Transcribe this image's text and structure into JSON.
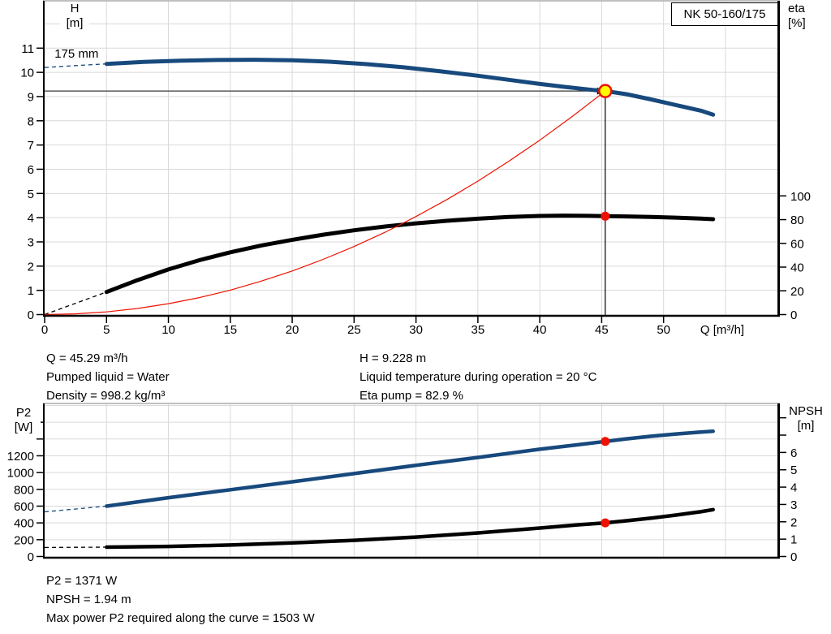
{
  "pump_model": "NK 50-160/175",
  "colors": {
    "blue": "#17497d",
    "black": "#000000",
    "red": "#ee1100",
    "yellow": "#ffff00",
    "grid": "#d9d9d9",
    "frame": "#999999",
    "guide": "#3a3a3a"
  },
  "info_mid": {
    "left": [
      "Q = 45.29 m³/h",
      "Pumped liquid = Water",
      "Density = 998.2 kg/m³"
    ],
    "right": [
      "H = 9.228 m",
      "Liquid temperature during operation = 20 °C",
      "Eta pump = 82.9 %"
    ]
  },
  "info_bottom": [
    "P2 = 1371 W",
    "NPSH = 1.94 m",
    "Max power P2 required along the curve = 1503 W"
  ],
  "chart_data": [
    {
      "name": "qh-eta-chart",
      "type": "line",
      "title": "NK 50-160/175",
      "x_axis": {
        "label": "Q [m³/h]",
        "min": 0,
        "max": 59.2,
        "ticks": [
          0,
          5,
          10,
          15,
          20,
          25,
          30,
          35,
          40,
          45,
          50
        ],
        "grid": [
          5,
          10,
          15,
          20,
          25,
          30,
          35,
          40,
          45,
          50,
          55
        ]
      },
      "left_axis": {
        "title": [
          "H",
          "[m]"
        ],
        "min": 0,
        "max": 12.92,
        "ticks": [
          0,
          1,
          2,
          3,
          4,
          5,
          6,
          7,
          8,
          9,
          10,
          11
        ],
        "grid": [
          1,
          2,
          3,
          4,
          5,
          6,
          7,
          8,
          9,
          10,
          11,
          12
        ]
      },
      "right_axis": {
        "title": [
          "eta",
          "[%]"
        ],
        "min": 0,
        "max": 263.7,
        "ticks": [
          0,
          20,
          40,
          60,
          80,
          100
        ],
        "ticks_unlabeled": []
      },
      "series": [
        {
          "name": "head-curve-175mm",
          "axis": "left",
          "color": "blue",
          "width": 5,
          "dash_points": [
            [
              0,
              10.2
            ],
            [
              2.5,
              10.28
            ],
            [
              5,
              10.35
            ]
          ],
          "points": [
            [
              5,
              10.35
            ],
            [
              8,
              10.43
            ],
            [
              11,
              10.48
            ],
            [
              14,
              10.51
            ],
            [
              17,
              10.52
            ],
            [
              20,
              10.5
            ],
            [
              23,
              10.44
            ],
            [
              26,
              10.34
            ],
            [
              29,
              10.21
            ],
            [
              32,
              10.04
            ],
            [
              35,
              9.86
            ],
            [
              38,
              9.66
            ],
            [
              40,
              9.52
            ],
            [
              42,
              9.4
            ],
            [
              44,
              9.29
            ],
            [
              45.29,
              9.228
            ],
            [
              47,
              9.1
            ],
            [
              49,
              8.88
            ],
            [
              51,
              8.65
            ],
            [
              53,
              8.42
            ],
            [
              54,
              8.25
            ]
          ]
        },
        {
          "name": "efficiency-curve",
          "axis": "right",
          "color": "black",
          "width": 5,
          "dash_points": [
            [
              0,
              0
            ],
            [
              5,
              19
            ]
          ],
          "points": [
            [
              5,
              19
            ],
            [
              7.5,
              29
            ],
            [
              10,
              38
            ],
            [
              12.5,
              45.8
            ],
            [
              15,
              52.5
            ],
            [
              17.5,
              58.2
            ],
            [
              20,
              63
            ],
            [
              22.5,
              67.3
            ],
            [
              25,
              71
            ],
            [
              27.5,
              74.2
            ],
            [
              30,
              76.9
            ],
            [
              32.5,
              79
            ],
            [
              35,
              80.8
            ],
            [
              37.5,
              82.2
            ],
            [
              40,
              83.1
            ],
            [
              42,
              83.4
            ],
            [
              44,
              83.2
            ],
            [
              45.29,
              82.9
            ],
            [
              47,
              82.7
            ],
            [
              49,
              82.3
            ],
            [
              51,
              81.7
            ],
            [
              53,
              80.9
            ],
            [
              54,
              80.4
            ]
          ]
        },
        {
          "name": "system-curve",
          "axis": "left",
          "color": "red",
          "width": 1.2,
          "points": [
            [
              0,
              0
            ],
            [
              2.5,
              0.03
            ],
            [
              5,
              0.11
            ],
            [
              7.5,
              0.25
            ],
            [
              10,
              0.45
            ],
            [
              12.5,
              0.7
            ],
            [
              15,
              1.01
            ],
            [
              17.5,
              1.38
            ],
            [
              20,
              1.8
            ],
            [
              22.5,
              2.28
            ],
            [
              25,
              2.81
            ],
            [
              27.5,
              3.4
            ],
            [
              30,
              4.05
            ],
            [
              32.5,
              4.75
            ],
            [
              35,
              5.51
            ],
            [
              37.5,
              6.33
            ],
            [
              40,
              7.2
            ],
            [
              42.5,
              8.13
            ],
            [
              45.29,
              9.228
            ]
          ]
        }
      ],
      "guides": {
        "q": 45.29,
        "axis": "left",
        "v": 9.228
      },
      "markers": [
        {
          "name": "duty-point-marker",
          "q": 45.29,
          "axis": "left",
          "v": 9.228,
          "r": 7.5,
          "fill": "yellow",
          "stroke": "red",
          "sw": 2.5
        },
        {
          "name": "efficiency-point-marker",
          "q": 45.29,
          "axis": "right",
          "v": 82.9,
          "r": 5.5,
          "fill": "red"
        }
      ],
      "annotations": [
        {
          "name": "impeller-diameter-label",
          "text": "175 mm",
          "q": 0.8,
          "axis": "left",
          "v": 10.61
        }
      ],
      "duty_point": {
        "q_m3h": 45.29,
        "h_m": 9.228,
        "eta_pct": 82.9
      }
    },
    {
      "name": "p2-npsh-chart",
      "type": "line",
      "x_axis": {
        "label": "",
        "min": 0,
        "max": 59.2,
        "ticks": [],
        "grid": [
          5,
          10,
          15,
          20,
          25,
          30,
          35,
          40,
          45,
          50,
          55
        ]
      },
      "left_axis": {
        "title": [
          "P2",
          "[W]"
        ],
        "min": 0,
        "max": 1814,
        "ticks": [
          0,
          200,
          400,
          600,
          800,
          1000,
          1200
        ],
        "ticks_unlabeled": [
          1400,
          1600
        ],
        "grid": [
          200,
          400,
          600,
          800,
          1000,
          1200,
          1400,
          1600,
          1800
        ]
      },
      "right_axis": {
        "title": [
          "NPSH",
          "[m]"
        ],
        "min": 0,
        "max": 8.78,
        "ticks": [
          0,
          1,
          2,
          3,
          4,
          5,
          6
        ],
        "ticks_unlabeled": [
          7,
          8
        ]
      },
      "series": [
        {
          "name": "p2-curve",
          "axis": "left",
          "color": "blue",
          "width": 4.5,
          "dash_points": [
            [
              0,
              532
            ],
            [
              5,
              600
            ]
          ],
          "points": [
            [
              5,
              600
            ],
            [
              10,
              700
            ],
            [
              15,
              795
            ],
            [
              20,
              890
            ],
            [
              25,
              988
            ],
            [
              30,
              1086
            ],
            [
              35,
              1180
            ],
            [
              40,
              1278
            ],
            [
              43,
              1330
            ],
            [
              45.29,
              1371
            ],
            [
              47,
              1402
            ],
            [
              49,
              1433
            ],
            [
              51,
              1460
            ],
            [
              53,
              1483
            ],
            [
              54,
              1492
            ]
          ]
        },
        {
          "name": "npsh-curve",
          "axis": "right",
          "color": "black",
          "width": 4.5,
          "dash_points": [
            [
              0,
              0.52
            ],
            [
              5,
              0.54
            ]
          ],
          "points": [
            [
              5,
              0.54
            ],
            [
              10,
              0.58
            ],
            [
              15,
              0.66
            ],
            [
              20,
              0.78
            ],
            [
              25,
              0.93
            ],
            [
              30,
              1.12
            ],
            [
              35,
              1.36
            ],
            [
              40,
              1.64
            ],
            [
              43,
              1.82
            ],
            [
              45.29,
              1.94
            ],
            [
              47,
              2.06
            ],
            [
              49,
              2.21
            ],
            [
              51,
              2.39
            ],
            [
              53,
              2.58
            ],
            [
              54,
              2.7
            ]
          ]
        }
      ],
      "markers": [
        {
          "name": "p2-point-marker",
          "q": 45.29,
          "axis": "left",
          "v": 1371,
          "r": 5.5,
          "fill": "red"
        },
        {
          "name": "npsh-point-marker",
          "q": 45.29,
          "axis": "right",
          "v": 1.94,
          "r": 5.5,
          "fill": "red"
        }
      ],
      "duty_point": {
        "q_m3h": 45.29,
        "p2_w": 1371,
        "npsh_m": 1.94
      }
    }
  ]
}
